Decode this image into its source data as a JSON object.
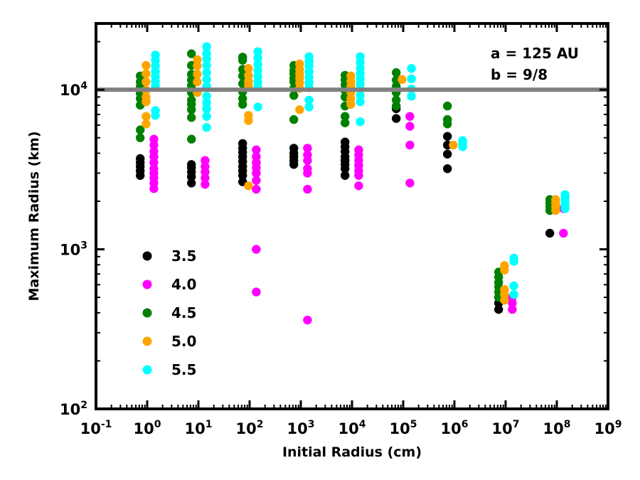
{
  "chart_data": {
    "type": "scatter",
    "title": "",
    "xlabel": "Initial Radius (cm)",
    "ylabel": "Maximum Radius (km)",
    "xscale": "log",
    "yscale": "log",
    "xlim": [
      0.1,
      1000000000
    ],
    "ylim": [
      100,
      26000
    ],
    "grid": false,
    "x_ticks": [
      {
        "base": "10",
        "exp": "-1",
        "value": 0.1
      },
      {
        "base": "10",
        "exp": "0",
        "value": 1
      },
      {
        "base": "10",
        "exp": "1",
        "value": 10
      },
      {
        "base": "10",
        "exp": "2",
        "value": 100
      },
      {
        "base": "10",
        "exp": "3",
        "value": 1000
      },
      {
        "base": "10",
        "exp": "4",
        "value": 10000
      },
      {
        "base": "10",
        "exp": "5",
        "value": 100000
      },
      {
        "base": "10",
        "exp": "6",
        "value": 1000000
      },
      {
        "base": "10",
        "exp": "7",
        "value": 10000000
      },
      {
        "base": "10",
        "exp": "8",
        "value": 100000000
      },
      {
        "base": "10",
        "exp": "9",
        "value": 1000000000
      }
    ],
    "y_ticks": [
      {
        "base": "10",
        "exp": "2",
        "value": 100
      },
      {
        "base": "10",
        "exp": "3",
        "value": 1000
      },
      {
        "base": "10",
        "exp": "4",
        "value": 10000
      }
    ],
    "hline": {
      "y": 10000,
      "color": "#808080"
    },
    "annotations": [
      "a = 125 AU",
      "b = 9/8"
    ],
    "legend": {
      "placement": "left-center"
    },
    "series": [
      {
        "name": "3.5",
        "color": "#000000",
        "points": [
          [
            0.73,
            2900
          ],
          [
            0.73,
            3100
          ],
          [
            0.73,
            3300
          ],
          [
            0.73,
            3500
          ],
          [
            0.73,
            3700
          ],
          [
            7.3,
            2600
          ],
          [
            7.3,
            2850
          ],
          [
            7.3,
            3050
          ],
          [
            7.3,
            3250
          ],
          [
            7.3,
            3400
          ],
          [
            73,
            2650
          ],
          [
            73,
            2900
          ],
          [
            73,
            3100
          ],
          [
            73,
            3300
          ],
          [
            73,
            3550
          ],
          [
            73,
            3800
          ],
          [
            73,
            4050
          ],
          [
            73,
            4300
          ],
          [
            73,
            4600
          ],
          [
            730,
            3400
          ],
          [
            730,
            3600
          ],
          [
            730,
            3800
          ],
          [
            730,
            4000
          ],
          [
            730,
            4300
          ],
          [
            7300,
            2900
          ],
          [
            7300,
            3200
          ],
          [
            7300,
            3400
          ],
          [
            7300,
            3600
          ],
          [
            7300,
            3800
          ],
          [
            7300,
            4100
          ],
          [
            7300,
            4400
          ],
          [
            7300,
            4700
          ],
          [
            73000,
            6600
          ],
          [
            73000,
            7600
          ],
          [
            730000,
            3200
          ],
          [
            730000,
            3950
          ],
          [
            730000,
            4500
          ],
          [
            730000,
            5100
          ],
          [
            7300000,
            420
          ],
          [
            7300000,
            460
          ],
          [
            7300000,
            500
          ],
          [
            73000000,
            1260
          ]
        ]
      },
      {
        "name": "4.0",
        "color": "#ff00ff",
        "points": [
          [
            1.35,
            2400
          ],
          [
            1.35,
            2600
          ],
          [
            1.35,
            2800
          ],
          [
            1.35,
            3000
          ],
          [
            1.35,
            3200
          ],
          [
            1.35,
            3500
          ],
          [
            1.35,
            3800
          ],
          [
            1.35,
            4100
          ],
          [
            1.35,
            4500
          ],
          [
            1.35,
            4900
          ],
          [
            13.5,
            2550
          ],
          [
            13.5,
            2800
          ],
          [
            13.5,
            3050
          ],
          [
            13.5,
            3300
          ],
          [
            13.5,
            3600
          ],
          [
            135,
            2380
          ],
          [
            135,
            2700
          ],
          [
            135,
            3000
          ],
          [
            135,
            3250
          ],
          [
            135,
            3500
          ],
          [
            135,
            3800
          ],
          [
            135,
            4200
          ],
          [
            135,
            1000
          ],
          [
            135,
            540
          ],
          [
            1350,
            2380
          ],
          [
            1350,
            3000
          ],
          [
            1350,
            3200
          ],
          [
            1350,
            3600
          ],
          [
            1350,
            3900
          ],
          [
            1350,
            4300
          ],
          [
            1350,
            360
          ],
          [
            13500,
            2500
          ],
          [
            13500,
            2900
          ],
          [
            13500,
            3100
          ],
          [
            13500,
            3350
          ],
          [
            13500,
            3600
          ],
          [
            13500,
            3900
          ],
          [
            13500,
            4200
          ],
          [
            135000,
            2600
          ],
          [
            135000,
            4500
          ],
          [
            135000,
            5900
          ],
          [
            135000,
            6800
          ],
          [
            13500000,
            420
          ],
          [
            13500000,
            460
          ],
          [
            13500000,
            500
          ],
          [
            135000000,
            1260
          ],
          [
            135000000,
            1800
          ]
        ]
      },
      {
        "name": "4.5",
        "color": "#008000",
        "points": [
          [
            0.73,
            5000
          ],
          [
            0.73,
            5600
          ],
          [
            0.73,
            8000
          ],
          [
            0.73,
            8800
          ],
          [
            0.73,
            9500
          ],
          [
            0.73,
            10400
          ],
          [
            0.73,
            11200
          ],
          [
            0.73,
            12200
          ],
          [
            7.3,
            4900
          ],
          [
            7.3,
            6700
          ],
          [
            7.3,
            7500
          ],
          [
            7.3,
            8100
          ],
          [
            7.3,
            8600
          ],
          [
            7.3,
            9600
          ],
          [
            7.3,
            10600
          ],
          [
            7.3,
            11500
          ],
          [
            7.3,
            12500
          ],
          [
            7.3,
            14200
          ],
          [
            7.3,
            16800
          ],
          [
            73,
            8100
          ],
          [
            73,
            8800
          ],
          [
            73,
            9700
          ],
          [
            73,
            10900
          ],
          [
            73,
            12200
          ],
          [
            73,
            13400
          ],
          [
            73,
            15300
          ],
          [
            73,
            16000
          ],
          [
            730,
            6500
          ],
          [
            730,
            9200
          ],
          [
            730,
            10200
          ],
          [
            730,
            11200
          ],
          [
            730,
            11800
          ],
          [
            730,
            12600
          ],
          [
            730,
            13200
          ],
          [
            730,
            14200
          ],
          [
            7300,
            6200
          ],
          [
            7300,
            6800
          ],
          [
            7300,
            7900
          ],
          [
            7300,
            9000
          ],
          [
            7300,
            9900
          ],
          [
            7300,
            10700
          ],
          [
            7300,
            11500
          ],
          [
            7300,
            12300
          ],
          [
            73000,
            7900
          ],
          [
            73000,
            8600
          ],
          [
            73000,
            9600
          ],
          [
            73000,
            10500
          ],
          [
            73000,
            11500
          ],
          [
            73000,
            12800
          ],
          [
            730000,
            6100
          ],
          [
            730000,
            6500
          ],
          [
            730000,
            7900
          ],
          [
            7300000,
            500
          ],
          [
            7300000,
            540
          ],
          [
            7300000,
            580
          ],
          [
            7300000,
            620
          ],
          [
            7300000,
            670
          ],
          [
            7300000,
            720
          ],
          [
            73000000,
            1750
          ],
          [
            73000000,
            1850
          ],
          [
            73000000,
            1950
          ],
          [
            73000000,
            2050
          ]
        ]
      },
      {
        "name": "5.0",
        "color": "#ffa500",
        "points": [
          [
            0.95,
            6100
          ],
          [
            0.95,
            6800
          ],
          [
            0.95,
            8400
          ],
          [
            0.95,
            9000
          ],
          [
            0.95,
            9900
          ],
          [
            0.95,
            11200
          ],
          [
            0.95,
            12600
          ],
          [
            0.95,
            14200
          ],
          [
            9.5,
            9600
          ],
          [
            9.5,
            11200
          ],
          [
            9.5,
            12500
          ],
          [
            9.5,
            14100
          ],
          [
            9.5,
            15400
          ],
          [
            95,
            2500
          ],
          [
            95,
            6400
          ],
          [
            95,
            6900
          ],
          [
            95,
            10600
          ],
          [
            95,
            11300
          ],
          [
            95,
            12300
          ],
          [
            95,
            13600
          ],
          [
            950,
            7500
          ],
          [
            950,
            10200
          ],
          [
            950,
            11000
          ],
          [
            950,
            11800
          ],
          [
            950,
            12600
          ],
          [
            950,
            13400
          ],
          [
            950,
            14500
          ],
          [
            9500,
            8100
          ],
          [
            9500,
            8800
          ],
          [
            9500,
            9600
          ],
          [
            9500,
            10500
          ],
          [
            9500,
            11300
          ],
          [
            9500,
            12200
          ],
          [
            95000,
            11600
          ],
          [
            950000,
            4500
          ],
          [
            9500000,
            480
          ],
          [
            9500000,
            520
          ],
          [
            9500000,
            560
          ],
          [
            9500000,
            740
          ],
          [
            9500000,
            790
          ],
          [
            95000000,
            1750
          ],
          [
            95000000,
            1850
          ],
          [
            95000000,
            1950
          ],
          [
            95000000,
            2050
          ]
        ]
      },
      {
        "name": "5.5",
        "color": "#00ffff",
        "points": [
          [
            1.45,
            6900
          ],
          [
            1.45,
            7400
          ],
          [
            1.45,
            10600
          ],
          [
            1.45,
            11300
          ],
          [
            1.45,
            12100
          ],
          [
            1.45,
            13000
          ],
          [
            1.45,
            14100
          ],
          [
            1.45,
            15300
          ],
          [
            1.45,
            16500
          ],
          [
            14.5,
            5800
          ],
          [
            14.5,
            6800
          ],
          [
            14.5,
            7600
          ],
          [
            14.5,
            8300
          ],
          [
            14.5,
            9100
          ],
          [
            14.5,
            10500
          ],
          [
            14.5,
            11600
          ],
          [
            14.5,
            12800
          ],
          [
            14.5,
            14200
          ],
          [
            14.5,
            15600
          ],
          [
            14.5,
            16900
          ],
          [
            14.5,
            18600
          ],
          [
            145,
            7800
          ],
          [
            145,
            10400
          ],
          [
            145,
            11200
          ],
          [
            145,
            12100
          ],
          [
            145,
            13200
          ],
          [
            145,
            14400
          ],
          [
            145,
            15800
          ],
          [
            145,
            17300
          ],
          [
            1450,
            7800
          ],
          [
            1450,
            8600
          ],
          [
            1450,
            10300
          ],
          [
            1450,
            11100
          ],
          [
            1450,
            12000
          ],
          [
            1450,
            13000
          ],
          [
            1450,
            14100
          ],
          [
            1450,
            15000
          ],
          [
            1450,
            16100
          ],
          [
            14500,
            6300
          ],
          [
            14500,
            8400
          ],
          [
            14500,
            9200
          ],
          [
            14500,
            10100
          ],
          [
            14500,
            10900
          ],
          [
            14500,
            11700
          ],
          [
            14500,
            12600
          ],
          [
            14500,
            13600
          ],
          [
            14500,
            14800
          ],
          [
            14500,
            16100
          ],
          [
            145000,
            9100
          ],
          [
            145000,
            10100
          ],
          [
            145000,
            11700
          ],
          [
            145000,
            13600
          ],
          [
            1450000,
            4400
          ],
          [
            1450000,
            4600
          ],
          [
            1450000,
            4800
          ],
          [
            14500000,
            520
          ],
          [
            14500000,
            590
          ],
          [
            14500000,
            840
          ],
          [
            14500000,
            880
          ],
          [
            145000000,
            1800
          ],
          [
            145000000,
            1900
          ],
          [
            145000000,
            2000
          ],
          [
            145000000,
            2100
          ],
          [
            145000000,
            2200
          ]
        ]
      }
    ]
  }
}
